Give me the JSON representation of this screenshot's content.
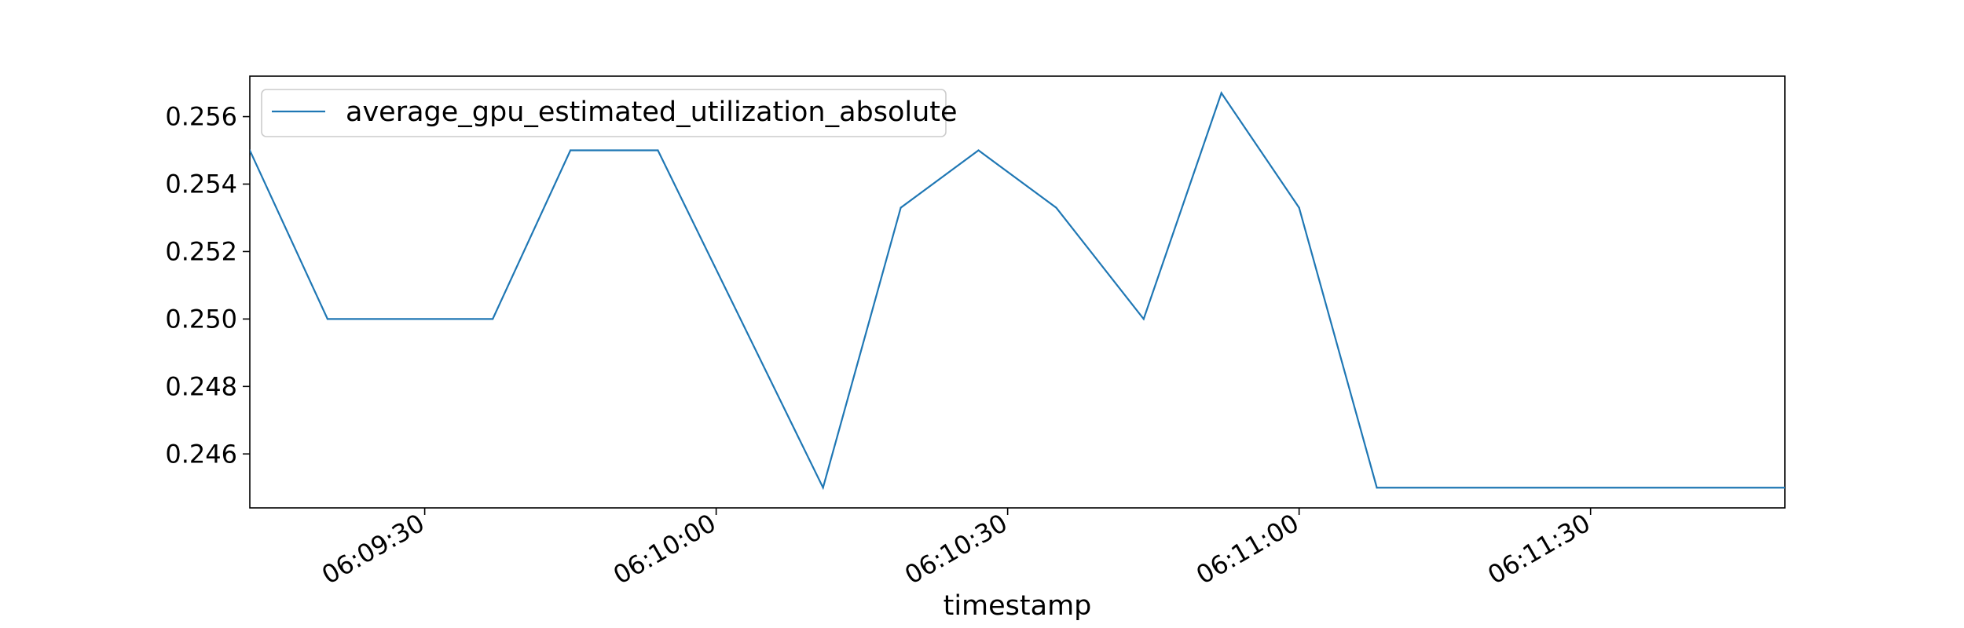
{
  "chart_data": {
    "type": "line",
    "title": "",
    "xlabel": "timestamp",
    "ylabel": "",
    "grid": false,
    "legend_position": "top-left",
    "xlim": [
      "06:09:12",
      "06:11:50"
    ],
    "ylim": [
      0.2444,
      0.2572
    ],
    "x_ticks": [
      "06:09:30",
      "06:10:00",
      "06:10:30",
      "06:11:00",
      "06:11:30"
    ],
    "y_ticks": [
      "0.246",
      "0.248",
      "0.250",
      "0.252",
      "0.254",
      "0.256"
    ],
    "series": [
      {
        "name": "average_gpu_estimated_utilization_absolute",
        "color": "#1f77b4",
        "x": [
          "06:09:12",
          "06:09:20",
          "06:09:37",
          "06:09:45",
          "06:09:54",
          "06:10:11",
          "06:10:19",
          "06:10:27",
          "06:10:35",
          "06:10:44",
          "06:10:52",
          "06:11:00",
          "06:11:08",
          "06:11:50"
        ],
        "values": [
          0.255,
          0.25,
          0.25,
          0.255,
          0.255,
          0.245,
          0.2533,
          0.255,
          0.2533,
          0.25,
          0.2567,
          0.2533,
          0.245,
          0.245
        ]
      }
    ]
  }
}
